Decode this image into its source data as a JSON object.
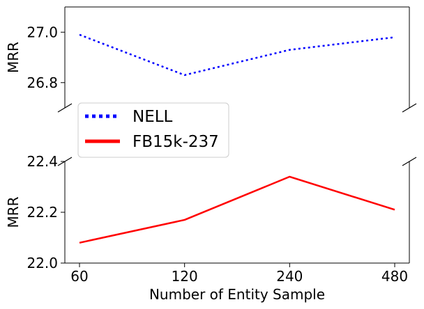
{
  "chart_data": {
    "type": "line",
    "broken_axis": true,
    "x_categories": [
      "60",
      "120",
      "240",
      "480"
    ],
    "xlabel": "Number of Entity Sample",
    "panels": [
      {
        "ylabel": "MRR",
        "ylim": [
          26.7,
          27.1
        ],
        "yticks": [
          "26.8",
          "27.0"
        ],
        "series": [
          {
            "name": "NELL",
            "color": "#0000ff",
            "style": "dotted",
            "values": [
              26.99,
              26.83,
              26.93,
              26.98
            ]
          }
        ]
      },
      {
        "ylabel": "MRR",
        "ylim": [
          22.0,
          22.4
        ],
        "yticks": [
          "22.0",
          "22.2",
          "22.4"
        ],
        "series": [
          {
            "name": "FB15k-237",
            "color": "#ff0000",
            "style": "solid",
            "values": [
              22.08,
              22.17,
              22.34,
              22.21
            ]
          }
        ]
      }
    ],
    "legend": {
      "position": "center-left",
      "entries": [
        {
          "label": "NELL",
          "color": "#0000ff",
          "style": "dotted"
        },
        {
          "label": "FB15k-237",
          "color": "#ff0000",
          "style": "solid"
        }
      ]
    },
    "grid": false
  }
}
